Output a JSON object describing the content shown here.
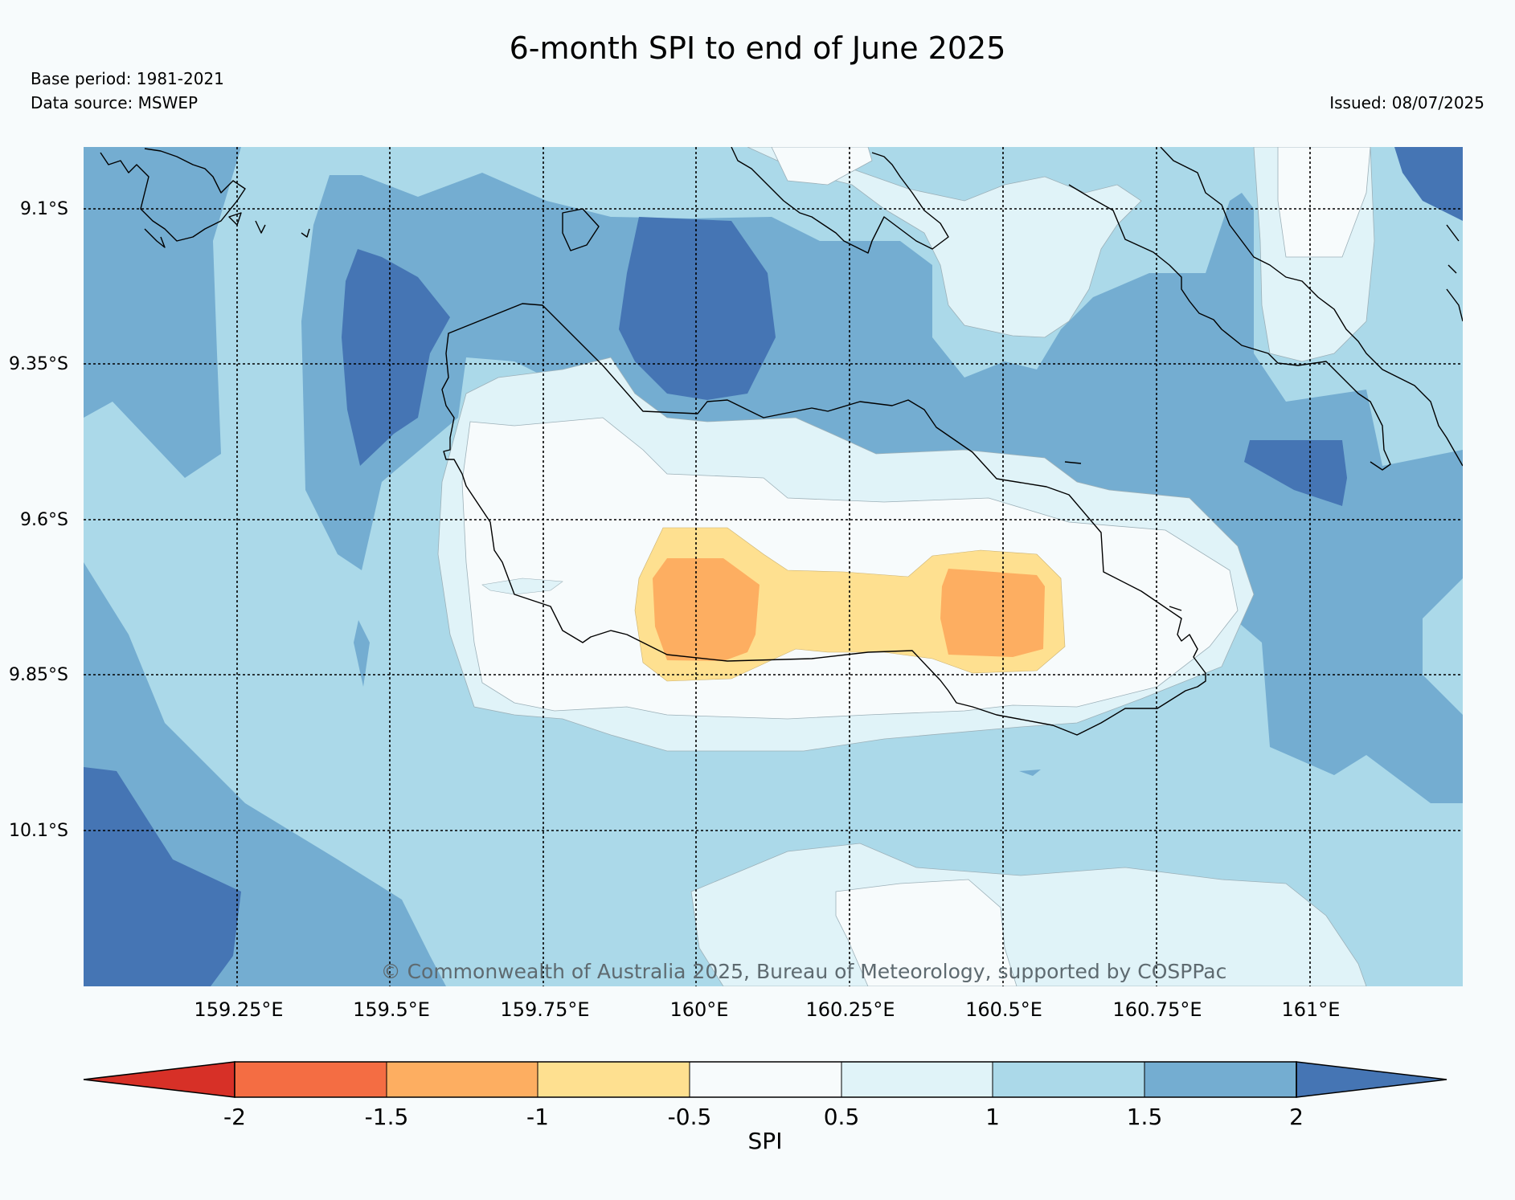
{
  "title": "6-month SPI to end of June 2025",
  "base_period": "Base period: 1981-2021",
  "data_source": "Data source: MSWEP",
  "issued": "Issued: 08/07/2025",
  "copyright": "© Commonwealth of Australia 2025, Bureau of Meteorology, supported by COSPPac",
  "lat_labels": [
    "9.1°S",
    "9.35°S",
    "9.6°S",
    "9.85°S",
    "10.1°S"
  ],
  "lon_labels": [
    "159.25°E",
    "159.5°E",
    "159.75°E",
    "160°E",
    "160.25°E",
    "160.5°E",
    "160.75°E",
    "161°E"
  ],
  "colorbar": {
    "label": "SPI",
    "ticks": [
      "-2",
      "-1.5",
      "-1",
      "-0.5",
      "0.5",
      "1",
      "1.5",
      "2"
    ],
    "colors": [
      "#d73027",
      "#f46d43",
      "#fdae61",
      "#fee090",
      "#f7fbfc",
      "#e0f3f8",
      "#abd9e9",
      "#74add1",
      "#4575b4"
    ]
  },
  "legend_colors": {
    "spi_lt_-2": "#d73027",
    "spi_-2_to_-1.5": "#f46d43",
    "spi_-1.5_to_-1": "#fdae61",
    "spi_-1_to_-0.5": "#fee090",
    "spi_-0.5_to_0.5": "#f7fbfc",
    "spi_0.5_to_1": "#e0f3f8",
    "spi_1_to_1.5": "#abd9e9",
    "spi_1.5_to_2": "#74add1",
    "spi_gt_2": "#4575b4"
  }
}
